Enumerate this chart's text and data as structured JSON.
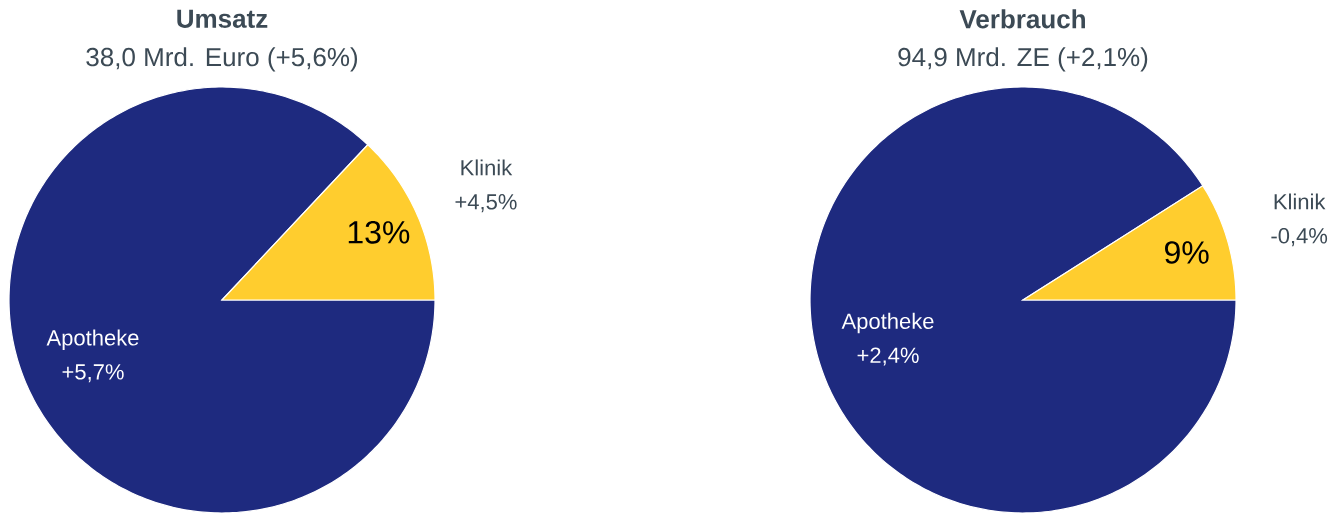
{
  "chart_data": [
    {
      "type": "pie",
      "title": "Umsatz",
      "subtitle": "38,0 Mrd. Euro (+5,6%)",
      "categories": [
        "Apotheke",
        "Klinik"
      ],
      "values": [
        87,
        13
      ],
      "colors": [
        "#1e2a7f",
        "#ffcd2e"
      ],
      "value_labels": [
        null,
        "13%"
      ],
      "annotations": [
        "+5,7%",
        "+4,5%"
      ]
    },
    {
      "type": "pie",
      "title": "Verbrauch",
      "subtitle": "94,9 Mrd. ZE (+2,1%)",
      "categories": [
        "Apotheke",
        "Klinik"
      ],
      "values": [
        91,
        9
      ],
      "colors": [
        "#1e2a7f",
        "#ffcd2e"
      ],
      "value_labels": [
        null,
        "9%"
      ],
      "annotations": [
        "+2,4%",
        "-0,4%"
      ]
    }
  ]
}
